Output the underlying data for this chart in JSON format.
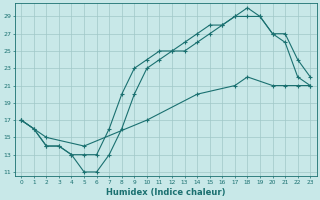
{
  "xlabel": "Humidex (Indice chaleur)",
  "bg_color": "#c8e8e8",
  "line_color": "#1a7070",
  "grid_color": "#a0c8c8",
  "xlim": [
    -0.5,
    23.5
  ],
  "ylim": [
    10.5,
    30.5
  ],
  "xticks": [
    0,
    1,
    2,
    3,
    4,
    5,
    6,
    7,
    8,
    9,
    10,
    11,
    12,
    13,
    14,
    15,
    16,
    17,
    18,
    19,
    20,
    21,
    22,
    23
  ],
  "yticks": [
    11,
    13,
    15,
    17,
    19,
    21,
    23,
    25,
    27,
    29
  ],
  "line1_x": [
    0,
    1,
    2,
    3,
    4,
    5,
    6,
    7,
    8,
    9,
    10,
    11,
    12,
    13,
    14,
    15,
    16,
    17,
    18,
    19,
    20,
    21,
    22,
    23
  ],
  "line1_y": [
    17,
    16,
    14,
    14,
    13,
    13,
    13,
    16,
    20,
    23,
    24,
    25,
    25,
    26,
    27,
    28,
    28,
    29,
    30,
    29,
    27,
    27,
    24,
    22
  ],
  "line2_x": [
    0,
    1,
    2,
    3,
    4,
    5,
    6,
    7,
    8,
    9,
    10,
    11,
    12,
    13,
    14,
    15,
    16,
    17,
    18,
    19,
    20,
    21,
    22,
    23
  ],
  "line2_y": [
    17,
    16,
    14,
    14,
    13,
    11,
    11,
    13,
    16,
    20,
    23,
    24,
    25,
    25,
    26,
    27,
    28,
    29,
    29,
    29,
    27,
    26,
    22,
    21
  ],
  "line3_x": [
    0,
    2,
    5,
    10,
    14,
    17,
    18,
    20,
    21,
    22,
    23
  ],
  "line3_y": [
    17,
    15,
    14,
    17,
    20,
    21,
    22,
    21,
    21,
    21,
    21
  ]
}
